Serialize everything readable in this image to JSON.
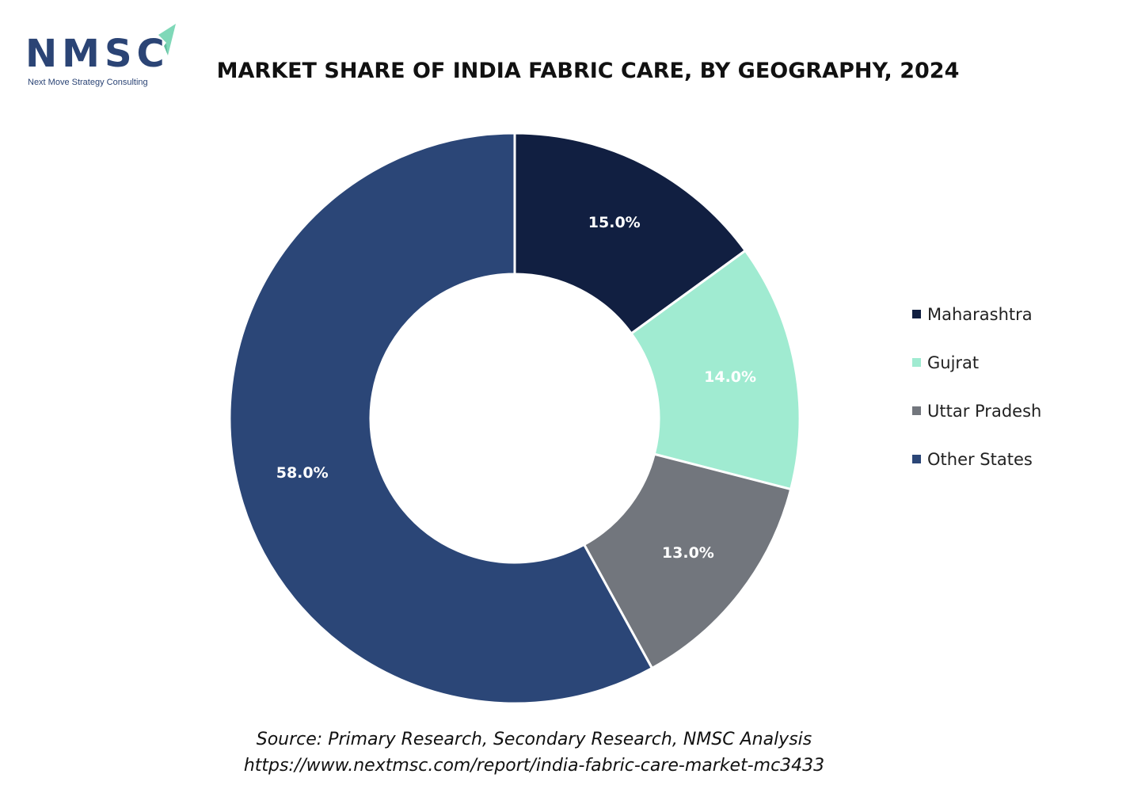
{
  "logo": {
    "wordmark": "NMSC",
    "tagline": "Next Move Strategy Consulting",
    "brand_color": "#2b4475",
    "accent_color": "#7fd8b8",
    "icon": "paper-plane-arrow-icon"
  },
  "chart_data": {
    "type": "pie",
    "variant": "donut",
    "title": "MARKET SHARE OF INDIA FABRIC CARE, BY GEOGRAPHY, 2024",
    "categories": [
      "Maharashtra",
      "Gujrat",
      "Uttar Pradesh",
      "Other States"
    ],
    "values": [
      15.0,
      14.0,
      13.0,
      58.0
    ],
    "data_labels": [
      "15.0%",
      "14.0%",
      "13.0%",
      "58.0%"
    ],
    "colors": [
      "#111f41",
      "#a0ebd1",
      "#72767d",
      "#2b4677"
    ],
    "label_colors": [
      "#ffffff",
      "#ffffff",
      "#ffffff",
      "#ffffff"
    ],
    "legend_position": "right",
    "start_angle": "12 o'clock, clockwise"
  },
  "footer": {
    "source": "Source: Primary Research, Secondary Research, NMSC Analysis",
    "url": "https://www.nextmsc.com/report/india-fabric-care-market-mc3433"
  }
}
